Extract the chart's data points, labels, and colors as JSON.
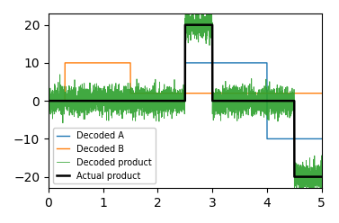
{
  "title": "",
  "xlim": [
    0,
    5
  ],
  "ylim": [
    -23,
    23
  ],
  "yticks": [
    -20,
    -10,
    0,
    10,
    20
  ],
  "xticks": [
    0,
    1,
    2,
    3,
    4,
    5
  ],
  "legend_labels": [
    "Decoded A",
    "Decoded B",
    "Decoded product",
    "Actual product"
  ],
  "colors": {
    "decoded_a": "#1f77b4",
    "decoded_b": "#ff7f0e",
    "decoded_product": "#2ca02c",
    "actual_product": "#000000"
  },
  "segments": {
    "decoded_a": [
      [
        0.0,
        0.0
      ],
      [
        2.5,
        0.0
      ],
      [
        2.5,
        10.0
      ],
      [
        4.0,
        10.0
      ],
      [
        4.0,
        -10.0
      ],
      [
        5.0,
        -10.0
      ]
    ],
    "decoded_b": [
      [
        0.0,
        0.0
      ],
      [
        0.3,
        0.0
      ],
      [
        0.3,
        10.0
      ],
      [
        1.5,
        10.0
      ],
      [
        1.5,
        2.0
      ],
      [
        5.0,
        2.0
      ]
    ],
    "actual_product": [
      [
        0.0,
        0.0
      ],
      [
        2.5,
        0.0
      ],
      [
        2.5,
        20.0
      ],
      [
        3.0,
        20.0
      ],
      [
        3.0,
        0.0
      ],
      [
        4.5,
        0.0
      ],
      [
        4.5,
        -20.0
      ],
      [
        5.0,
        -20.0
      ]
    ]
  },
  "noise_std": 1.8,
  "seed": 42,
  "n_points": 5000
}
